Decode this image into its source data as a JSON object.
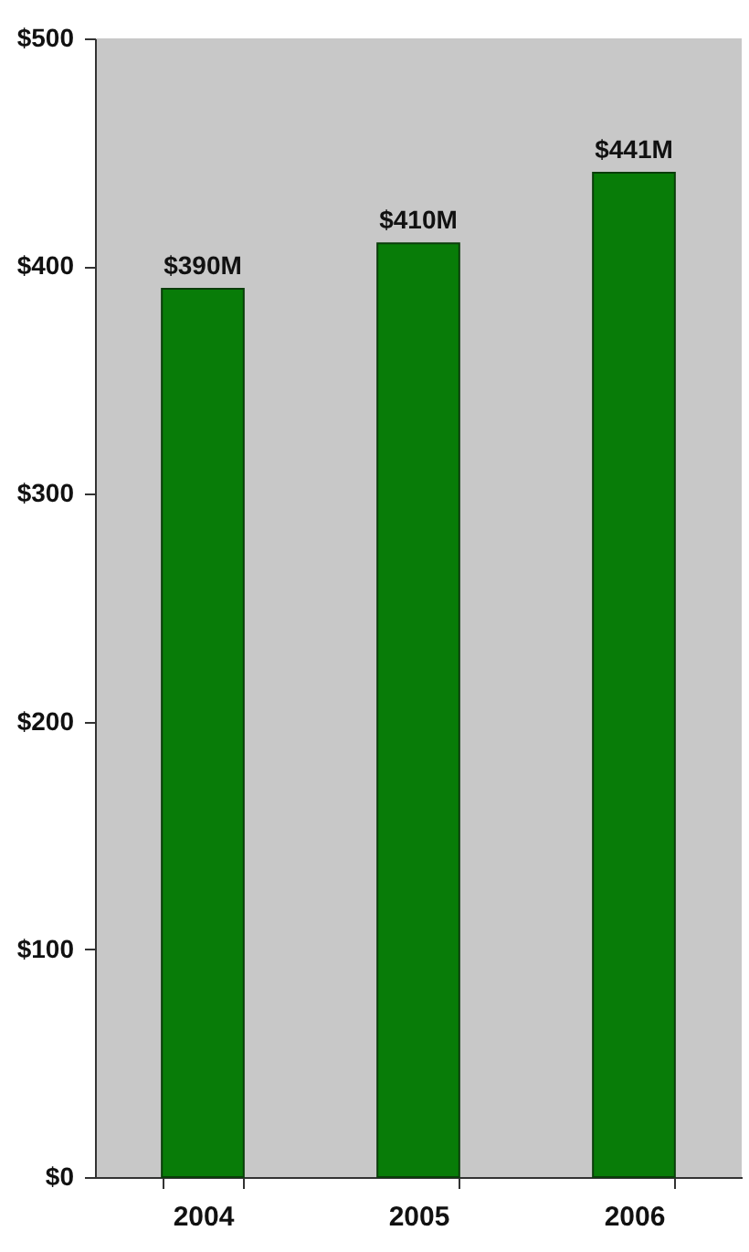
{
  "chart_data": {
    "type": "bar",
    "categories": [
      "2004",
      "2005",
      "2006"
    ],
    "values": [
      390,
      410,
      441
    ],
    "value_labels": [
      "$390M",
      "$410M",
      "$441M"
    ],
    "color": "#087c08",
    "ylim": [
      0,
      500
    ],
    "yticks": [
      {
        "value": 0,
        "label": "$0"
      },
      {
        "value": 100,
        "label": "$100"
      },
      {
        "value": 200,
        "label": "$200"
      },
      {
        "value": 300,
        "label": "$300"
      },
      {
        "value": 400,
        "label": "$400"
      },
      {
        "value": 500,
        "label": "$500"
      }
    ],
    "grid": false
  }
}
